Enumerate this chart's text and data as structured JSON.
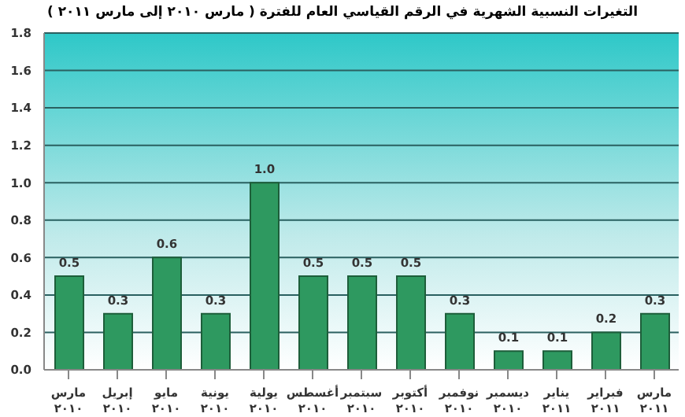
{
  "chart_data": {
    "type": "bar",
    "title": "التغيرات النسبية الشهرية في الرقم القياسي العام للفترة ( مارس ٢٠١٠ إلى مارس ٢٠١١ )",
    "categories": [
      "مارس ٢٠١٠",
      "إبريل ٢٠١٠",
      "مايو ٢٠١٠",
      "يونية ٢٠١٠",
      "يولية ٢٠١٠",
      "أغسطس ٢٠١٠",
      "سبتمبر ٢٠١٠",
      "أكتوبر ٢٠١٠",
      "نوفمبر ٢٠١٠",
      "ديسمبر ٢٠١٠",
      "يناير ٢٠١١",
      "فبراير ٢٠١١",
      "مارس ٢٠١١"
    ],
    "values": [
      0.5,
      0.3,
      0.6,
      0.3,
      1.0,
      0.5,
      0.5,
      0.5,
      0.3,
      0.1,
      0.1,
      0.2,
      0.3
    ],
    "value_labels": [
      "0.5",
      "0.3",
      "0.6",
      "0.3",
      "1.0",
      "0.5",
      "0.5",
      "0.5",
      "0.3",
      "0.1",
      "0.1",
      "0.2",
      "0.3"
    ],
    "color": "#2e9960",
    "ylim": [
      0,
      1.8
    ],
    "yticks": [
      {
        "value": 0,
        "label": "0.0"
      },
      {
        "value": 0.2,
        "label": "0.2"
      },
      {
        "value": 0.4,
        "label": "0.4"
      },
      {
        "value": 0.6,
        "label": "0.6"
      },
      {
        "value": 0.8,
        "label": "0.8"
      },
      {
        "value": 1,
        "label": "1.0"
      },
      {
        "value": 1.2,
        "label": "1.2"
      },
      {
        "value": 1.4,
        "label": "1.4"
      },
      {
        "value": 1.6,
        "label": "1.6"
      },
      {
        "value": 1.8,
        "label": "1.8"
      }
    ],
    "grid": "y"
  }
}
